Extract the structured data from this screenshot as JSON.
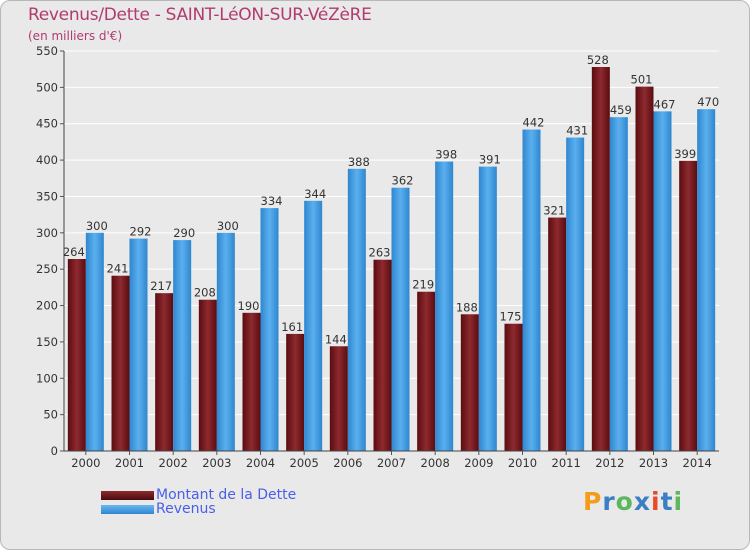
{
  "header": {
    "title": "Revenus/Dette - SAINT-LéON-SUR-VéZèRE",
    "subtitle": "(en milliers d'€)"
  },
  "logo": {
    "text": "Proxiti",
    "colors": [
      "#f39c1a",
      "#3a7fc4",
      "#5cb85c",
      "#3a7fc4",
      "#e84a2a",
      "#3a7fc4",
      "#5cb85c"
    ]
  },
  "chart_data": {
    "type": "bar",
    "title": "Revenus/Dette - SAINT-LéON-SUR-VéZèRE",
    "ylabel": "(en milliers d'€)",
    "categories": [
      "2000",
      "2001",
      "2002",
      "2003",
      "2004",
      "2005",
      "2006",
      "2007",
      "2008",
      "2009",
      "2010",
      "2011",
      "2012",
      "2013",
      "2014"
    ],
    "series": [
      {
        "name": "Montant de la Dette",
        "color": "#7a1a1f",
        "values": [
          264,
          241,
          217,
          208,
          190,
          161,
          144,
          263,
          219,
          188,
          175,
          321,
          528,
          501,
          399
        ]
      },
      {
        "name": "Revenus",
        "color": "#3d9be0",
        "values": [
          300,
          292,
          290,
          300,
          334,
          344,
          388,
          362,
          398,
          391,
          442,
          431,
          459,
          467,
          470
        ]
      }
    ],
    "ylim": [
      0,
      550
    ],
    "yticks": [
      0,
      50,
      100,
      150,
      200,
      250,
      300,
      350,
      400,
      450,
      500,
      550
    ],
    "grid": true,
    "legend": "bottom-left"
  }
}
